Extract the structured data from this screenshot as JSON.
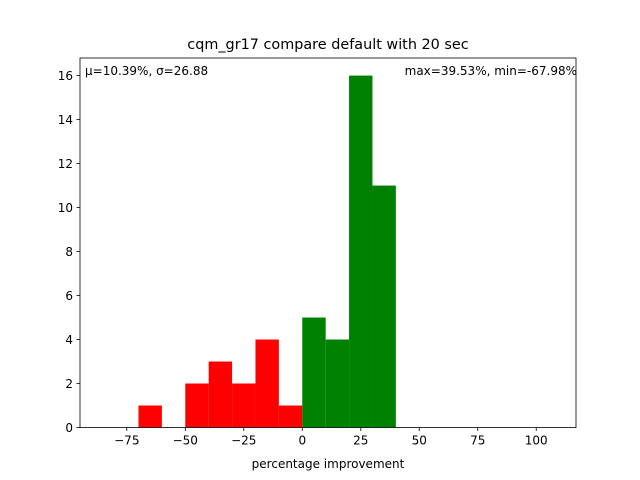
{
  "chart_data": {
    "type": "bar",
    "title": "cqm_gr17 compare default with 20 sec",
    "xlabel": "percentage improvement",
    "ylabel": "",
    "xlim": [
      -95,
      117
    ],
    "ylim": [
      0,
      16.8
    ],
    "xticks": [
      -75,
      -50,
      -25,
      0,
      25,
      50,
      75,
      100
    ],
    "yticks": [
      0,
      2,
      4,
      6,
      8,
      10,
      12,
      14,
      16
    ],
    "grid": false,
    "annotations": {
      "stats_left": "μ=10.39%, σ=26.88",
      "stats_right": "max=39.53%, min=-67.98%"
    },
    "bins": [
      {
        "x0": -90,
        "x1": -80,
        "value": 0,
        "color": "#ff0000"
      },
      {
        "x0": -80,
        "x1": -70,
        "value": 0,
        "color": "#ff0000"
      },
      {
        "x0": -70,
        "x1": -60,
        "value": 1,
        "color": "#ff0000"
      },
      {
        "x0": -60,
        "x1": -50,
        "value": 0,
        "color": "#ff0000"
      },
      {
        "x0": -50,
        "x1": -40,
        "value": 2,
        "color": "#ff0000"
      },
      {
        "x0": -40,
        "x1": -30,
        "value": 3,
        "color": "#ff0000"
      },
      {
        "x0": -30,
        "x1": -20,
        "value": 2,
        "color": "#ff0000"
      },
      {
        "x0": -20,
        "x1": -10,
        "value": 4,
        "color": "#ff0000"
      },
      {
        "x0": -10,
        "x1": 0,
        "value": 1,
        "color": "#ff0000"
      },
      {
        "x0": 0,
        "x1": 10,
        "value": 5,
        "color": "#008000"
      },
      {
        "x0": 10,
        "x1": 20,
        "value": 4,
        "color": "#008000"
      },
      {
        "x0": 20,
        "x1": 30,
        "value": 16,
        "color": "#008000"
      },
      {
        "x0": 30,
        "x1": 40,
        "value": 11,
        "color": "#008000"
      },
      {
        "x0": 40,
        "x1": 50,
        "value": 0,
        "color": "#008000"
      },
      {
        "x0": 50,
        "x1": 60,
        "value": 0,
        "color": "#008000"
      },
      {
        "x0": 60,
        "x1": 70,
        "value": 0,
        "color": "#008000"
      },
      {
        "x0": 70,
        "x1": 80,
        "value": 0,
        "color": "#008000"
      },
      {
        "x0": 80,
        "x1": 90,
        "value": 0,
        "color": "#008000"
      },
      {
        "x0": 90,
        "x1": 100,
        "value": 0,
        "color": "#008000"
      },
      {
        "x0": 100,
        "x1": 110,
        "value": 0,
        "color": "#008000"
      }
    ]
  }
}
